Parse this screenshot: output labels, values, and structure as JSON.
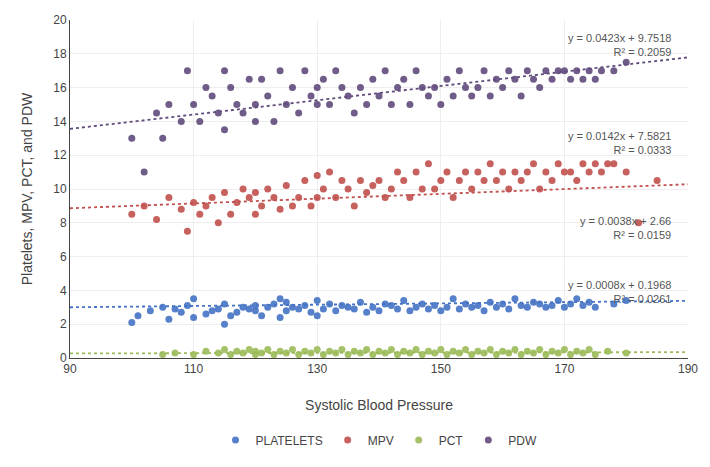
{
  "chart_data": {
    "type": "scatter",
    "xlabel": "Systolic Blood Pressure",
    "ylabel": "Platelets, MPV, PCT, and PDW",
    "xlim": [
      90,
      190
    ],
    "ylim": [
      0,
      20
    ],
    "xticks": [
      90,
      110,
      130,
      150,
      170,
      190
    ],
    "yticks": [
      0,
      2,
      4,
      6,
      8,
      10,
      12,
      14,
      16,
      18,
      20
    ],
    "grid": true,
    "legend": "bottom",
    "series": [
      {
        "name": "PLATELETS",
        "color": "#4472C4",
        "type": "scatter",
        "marker": "circle",
        "x": [
          100,
          101,
          103,
          105,
          106,
          107,
          108,
          109,
          110,
          110,
          112,
          113,
          114,
          115,
          115,
          116,
          117,
          118,
          119,
          120,
          120,
          121,
          122,
          123,
          124,
          124,
          125,
          125,
          126,
          127,
          128,
          129,
          130,
          130,
          131,
          132,
          133,
          134,
          135,
          136,
          137,
          138,
          139,
          140,
          141,
          142,
          143,
          144,
          145,
          146,
          147,
          148,
          149,
          150,
          151,
          152,
          153,
          154,
          155,
          156,
          157,
          158,
          159,
          160,
          161,
          162,
          163,
          164,
          165,
          166,
          167,
          168,
          169,
          170,
          171,
          172,
          173,
          174,
          175,
          178,
          180
        ],
        "values": [
          2.1,
          2.5,
          2.8,
          3.0,
          2.3,
          2.9,
          2.7,
          3.1,
          2.4,
          3.5,
          2.6,
          2.8,
          2.9,
          3.2,
          2.0,
          2.5,
          2.7,
          3.0,
          2.9,
          3.1,
          2.8,
          2.5,
          3.0,
          3.2,
          2.4,
          3.5,
          2.8,
          3.3,
          3.0,
          2.9,
          3.1,
          2.7,
          2.5,
          3.4,
          2.9,
          3.2,
          2.8,
          3.1,
          3.0,
          2.9,
          3.3,
          2.7,
          3.0,
          2.8,
          3.2,
          3.1,
          2.9,
          3.4,
          2.8,
          3.0,
          3.2,
          2.9,
          3.1,
          2.8,
          3.0,
          3.5,
          2.9,
          3.2,
          3.0,
          3.1,
          2.8,
          3.3,
          3.0,
          3.2,
          2.9,
          3.5,
          3.1,
          3.0,
          3.3,
          3.2,
          3.0,
          3.1,
          3.4,
          3.0,
          3.2,
          3.5,
          3.1,
          3.3,
          3.0,
          3.2,
          3.4
        ]
      },
      {
        "name": "MPV",
        "color": "#C0504D",
        "type": "scatter",
        "marker": "circle",
        "x": [
          100,
          102,
          104,
          106,
          108,
          109,
          110,
          111,
          112,
          113,
          114,
          115,
          116,
          117,
          118,
          119,
          120,
          120,
          121,
          122,
          123,
          124,
          125,
          126,
          127,
          128,
          129,
          130,
          130,
          131,
          132,
          133,
          134,
          135,
          136,
          137,
          138,
          139,
          140,
          141,
          142,
          143,
          144,
          145,
          146,
          147,
          148,
          149,
          150,
          151,
          152,
          153,
          154,
          155,
          156,
          157,
          158,
          159,
          160,
          161,
          162,
          163,
          164,
          165,
          166,
          167,
          168,
          169,
          170,
          171,
          172,
          173,
          174,
          175,
          176,
          177,
          178,
          180,
          182,
          185
        ],
        "values": [
          8.5,
          9.0,
          8.2,
          9.5,
          8.8,
          7.5,
          9.2,
          8.5,
          9.0,
          9.5,
          8.0,
          9.8,
          8.5,
          9.2,
          10.0,
          9.5,
          9.8,
          8.5,
          9.0,
          10.0,
          9.5,
          8.8,
          10.2,
          9.0,
          9.5,
          10.5,
          9.0,
          10.8,
          9.5,
          10.0,
          11.0,
          9.5,
          10.5,
          10.0,
          9.0,
          10.5,
          9.8,
          10.2,
          10.5,
          9.5,
          10.0,
          11.0,
          10.5,
          9.5,
          11.0,
          10.0,
          11.5,
          10.0,
          10.5,
          11.0,
          9.5,
          10.5,
          11.0,
          10.0,
          11.0,
          10.5,
          11.5,
          10.5,
          11.0,
          10.0,
          11.0,
          10.5,
          11.0,
          11.5,
          10.0,
          11.0,
          10.5,
          11.5,
          11.0,
          11.0,
          10.5,
          11.5,
          11.0,
          11.5,
          11.0,
          11.5,
          11.5,
          11.0,
          8.0,
          10.5
        ]
      },
      {
        "name": "PCT",
        "color": "#9BBB59",
        "type": "scatter",
        "marker": "circle",
        "x": [
          105,
          107,
          110,
          112,
          114,
          115,
          116,
          117,
          118,
          119,
          120,
          120,
          121,
          122,
          123,
          124,
          125,
          126,
          127,
          128,
          129,
          130,
          131,
          132,
          133,
          134,
          135,
          136,
          137,
          138,
          139,
          140,
          141,
          142,
          143,
          144,
          145,
          146,
          147,
          148,
          149,
          150,
          151,
          152,
          153,
          154,
          155,
          156,
          157,
          158,
          159,
          160,
          161,
          162,
          163,
          164,
          165,
          166,
          167,
          168,
          169,
          170,
          171,
          172,
          173,
          174,
          175,
          177,
          180
        ],
        "values": [
          0.2,
          0.3,
          0.2,
          0.4,
          0.3,
          0.5,
          0.2,
          0.4,
          0.3,
          0.5,
          0.2,
          0.4,
          0.3,
          0.5,
          0.2,
          0.4,
          0.3,
          0.5,
          0.2,
          0.4,
          0.3,
          0.5,
          0.2,
          0.4,
          0.3,
          0.5,
          0.2,
          0.4,
          0.3,
          0.5,
          0.2,
          0.4,
          0.3,
          0.5,
          0.2,
          0.4,
          0.3,
          0.5,
          0.2,
          0.4,
          0.3,
          0.5,
          0.2,
          0.4,
          0.3,
          0.5,
          0.2,
          0.4,
          0.3,
          0.5,
          0.2,
          0.4,
          0.3,
          0.5,
          0.2,
          0.4,
          0.3,
          0.5,
          0.2,
          0.4,
          0.3,
          0.5,
          0.2,
          0.4,
          0.3,
          0.5,
          0.2,
          0.4,
          0.3
        ]
      },
      {
        "name": "PDW",
        "color": "#604A7B",
        "type": "scatter",
        "marker": "circle",
        "x": [
          100,
          102,
          104,
          105,
          106,
          108,
          109,
          110,
          111,
          112,
          113,
          114,
          115,
          115,
          116,
          117,
          118,
          119,
          120,
          120,
          121,
          122,
          123,
          124,
          125,
          126,
          127,
          128,
          129,
          130,
          130,
          131,
          132,
          133,
          134,
          135,
          136,
          137,
          138,
          139,
          140,
          141,
          142,
          143,
          144,
          145,
          146,
          147,
          148,
          149,
          150,
          151,
          152,
          153,
          154,
          155,
          156,
          157,
          158,
          159,
          160,
          161,
          162,
          163,
          164,
          165,
          166,
          167,
          168,
          169,
          170,
          171,
          172,
          173,
          174,
          175,
          176,
          178,
          180
        ],
        "values": [
          13.0,
          11.0,
          14.5,
          13.0,
          15.0,
          14.0,
          17.0,
          15.0,
          14.0,
          16.0,
          15.5,
          14.5,
          17.0,
          13.5,
          16.0,
          15.0,
          14.5,
          16.5,
          15.0,
          14.0,
          16.5,
          15.5,
          14.0,
          17.0,
          15.0,
          16.0,
          14.5,
          17.0,
          15.5,
          16.0,
          15.0,
          16.5,
          15.0,
          17.0,
          16.0,
          15.5,
          14.5,
          16.0,
          15.0,
          16.5,
          15.5,
          17.0,
          15.0,
          16.0,
          16.5,
          15.0,
          17.0,
          16.0,
          15.5,
          16.0,
          15.0,
          16.5,
          15.5,
          17.0,
          16.0,
          15.5,
          16.0,
          17.0,
          15.5,
          16.5,
          16.0,
          17.0,
          16.5,
          15.5,
          17.0,
          16.5,
          16.0,
          17.0,
          16.5,
          17.0,
          17.0,
          16.5,
          17.0,
          16.5,
          17.0,
          16.5,
          17.0,
          17.0,
          17.5
        ]
      },
      {
        "color": "#4472C4",
        "type": "line",
        "line_style": "dotted",
        "x": [
          90,
          190
        ],
        "values": [
          3.002,
          3.382
        ]
      },
      {
        "color": "#C0504D",
        "type": "line",
        "line_style": "dotted",
        "x": [
          90,
          190
        ],
        "values": [
          8.8601,
          10.2801
        ]
      },
      {
        "color": "#9BBB59",
        "type": "line",
        "line_style": "dotted",
        "x": [
          90,
          190
        ],
        "values": [
          0.2688,
          0.3488
        ]
      },
      {
        "color": "#604A7B",
        "type": "line",
        "line_style": "dotted",
        "x": [
          90,
          190
        ],
        "values": [
          13.5588,
          17.7888
        ]
      }
    ],
    "annotations": [
      "y = 0.0423x + 9.7518\nR² = 0.2059",
      "y = 0.0142x + 7.5821\nR² = 0.0333",
      "y = 0.0038x + 2.66\nR² = 0.0159",
      "y = 0.0008x + 0.1968\nR² = 0.0261"
    ]
  }
}
